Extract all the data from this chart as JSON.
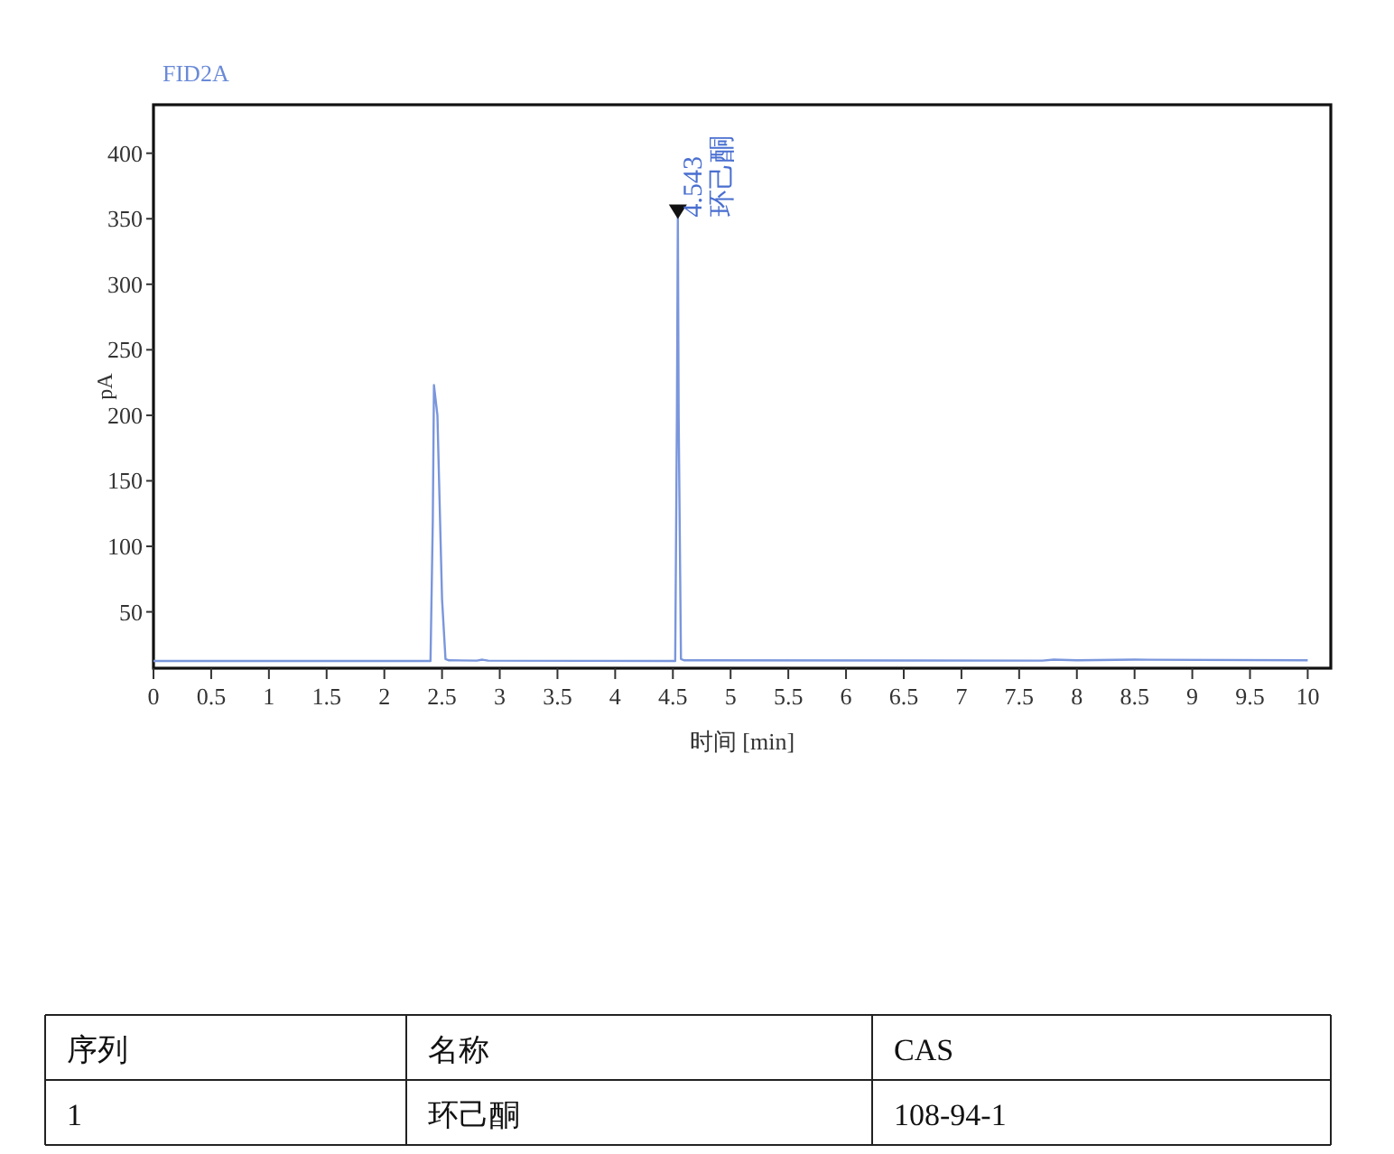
{
  "chart_data": {
    "type": "line",
    "title": "FID2A",
    "xlabel": "时间 [min]",
    "ylabel": "pA",
    "x": [
      0,
      2.4,
      2.42,
      2.43,
      2.46,
      2.5,
      2.53,
      2.56,
      2.8,
      2.85,
      2.9,
      4.52,
      4.535,
      4.543,
      4.55,
      4.57,
      4.6,
      7.7,
      7.8,
      8.0,
      8.5,
      10
    ],
    "values": [
      12.5,
      12.5,
      120,
      223,
      200,
      60,
      14,
      13,
      12.8,
      13.5,
      12.8,
      12.5,
      200,
      354,
      200,
      14,
      13,
      12.8,
      13.5,
      13,
      13.5,
      13
    ],
    "color": "#7a96dc",
    "xlim": [
      0,
      10.2
    ],
    "ylim": [
      7,
      437
    ],
    "xticks": [
      0,
      0.5,
      1,
      1.5,
      2,
      2.5,
      3,
      3.5,
      4,
      4.5,
      5,
      5.5,
      6,
      6.5,
      7,
      7.5,
      8,
      8.5,
      9,
      9.5,
      10
    ],
    "yticks": [
      50,
      100,
      150,
      200,
      250,
      300,
      350,
      400
    ],
    "annotations": [
      {
        "text": "4.543",
        "x": 4.543,
        "y": 354
      },
      {
        "text": "环己酮",
        "x": 4.543,
        "y": 354
      },
      "序列",
      "名称",
      "CAS",
      "1",
      "环己酮",
      "108-94-1"
    ]
  }
}
